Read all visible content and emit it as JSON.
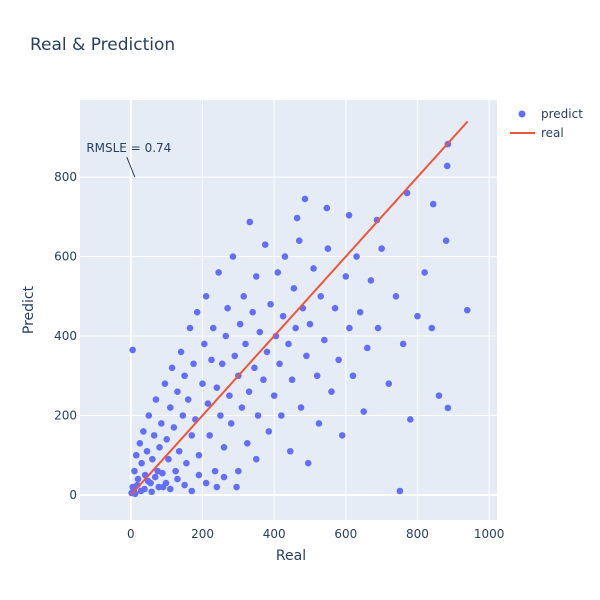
{
  "chart_data": {
    "type": "scatter",
    "title": "Real & Prediction",
    "x_label": "Real",
    "y_label": "Predict",
    "xlim": [
      -142,
      1022
    ],
    "ylim": [
      -63,
      994
    ],
    "xticks": [
      0,
      200,
      400,
      600,
      800,
      1000
    ],
    "yticks": [
      0,
      200,
      400,
      600,
      800
    ],
    "grid": true,
    "legend_position": "top-right",
    "annotation": {
      "text": "RMSLE = 0.74",
      "x": 11,
      "y": 800
    },
    "series": [
      {
        "name": "predict",
        "color": "#636efa",
        "mode": "markers",
        "x": [
          885,
          883,
          771,
          751,
          939,
          885,
          844,
          486,
          332,
          5,
          464,
          687,
          547,
          609,
          5,
          10,
          15,
          20,
          25,
          30,
          35,
          40,
          45,
          50,
          55,
          60,
          65,
          70,
          75,
          80,
          85,
          90,
          95,
          100,
          105,
          110,
          115,
          120,
          125,
          130,
          135,
          140,
          145,
          150,
          155,
          160,
          165,
          170,
          175,
          180,
          185,
          190,
          200,
          205,
          210,
          215,
          220,
          225,
          230,
          235,
          240,
          245,
          250,
          255,
          260,
          265,
          270,
          275,
          280,
          285,
          290,
          295,
          300,
          305,
          310,
          315,
          320,
          325,
          330,
          340,
          345,
          350,
          355,
          360,
          370,
          375,
          380,
          385,
          390,
          400,
          405,
          410,
          415,
          420,
          425,
          430,
          440,
          445,
          450,
          455,
          460,
          470,
          475,
          480,
          490,
          495,
          500,
          510,
          520,
          525,
          530,
          540,
          550,
          560,
          570,
          580,
          590,
          600,
          610,
          620,
          630,
          640,
          650,
          660,
          670,
          690,
          700,
          720,
          740,
          760,
          780,
          800,
          820,
          840,
          860,
          880,
          2,
          8,
          12,
          18,
          28,
          38,
          48,
          58,
          68,
          78,
          88,
          98,
          110,
          130,
          150,
          170,
          190,
          210,
          240,
          260,
          300,
          350
        ],
        "values": [
          883,
          828,
          760,
          10,
          465,
          219,
          732,
          745,
          687,
          365,
          697,
          692,
          722,
          704,
          20,
          60,
          100,
          40,
          130,
          80,
          160,
          50,
          110,
          200,
          30,
          90,
          150,
          240,
          60,
          120,
          180,
          20,
          280,
          140,
          90,
          220,
          320,
          170,
          60,
          260,
          110,
          360,
          200,
          300,
          80,
          240,
          420,
          150,
          330,
          190,
          460,
          100,
          280,
          380,
          500,
          230,
          150,
          340,
          420,
          60,
          270,
          560,
          200,
          330,
          120,
          400,
          470,
          250,
          180,
          600,
          350,
          20,
          300,
          430,
          220,
          500,
          380,
          130,
          260,
          460,
          320,
          550,
          200,
          410,
          290,
          630,
          360,
          160,
          480,
          250,
          400,
          560,
          330,
          200,
          450,
          600,
          380,
          110,
          290,
          520,
          420,
          640,
          220,
          470,
          350,
          80,
          430,
          570,
          300,
          180,
          500,
          390,
          620,
          260,
          470,
          340,
          150,
          550,
          420,
          300,
          600,
          460,
          210,
          370,
          540,
          420,
          620,
          280,
          500,
          380,
          190,
          450,
          560,
          420,
          250,
          640,
          5,
          12,
          3,
          25,
          10,
          15,
          35,
          8,
          45,
          20,
          55,
          30,
          15,
          40,
          25,
          10,
          50,
          30,
          20,
          45,
          60,
          90
        ]
      },
      {
        "name": "real",
        "color": "#ef553b",
        "mode": "lines",
        "x": [
          1,
          940
        ],
        "values": [
          1,
          940
        ]
      }
    ]
  }
}
